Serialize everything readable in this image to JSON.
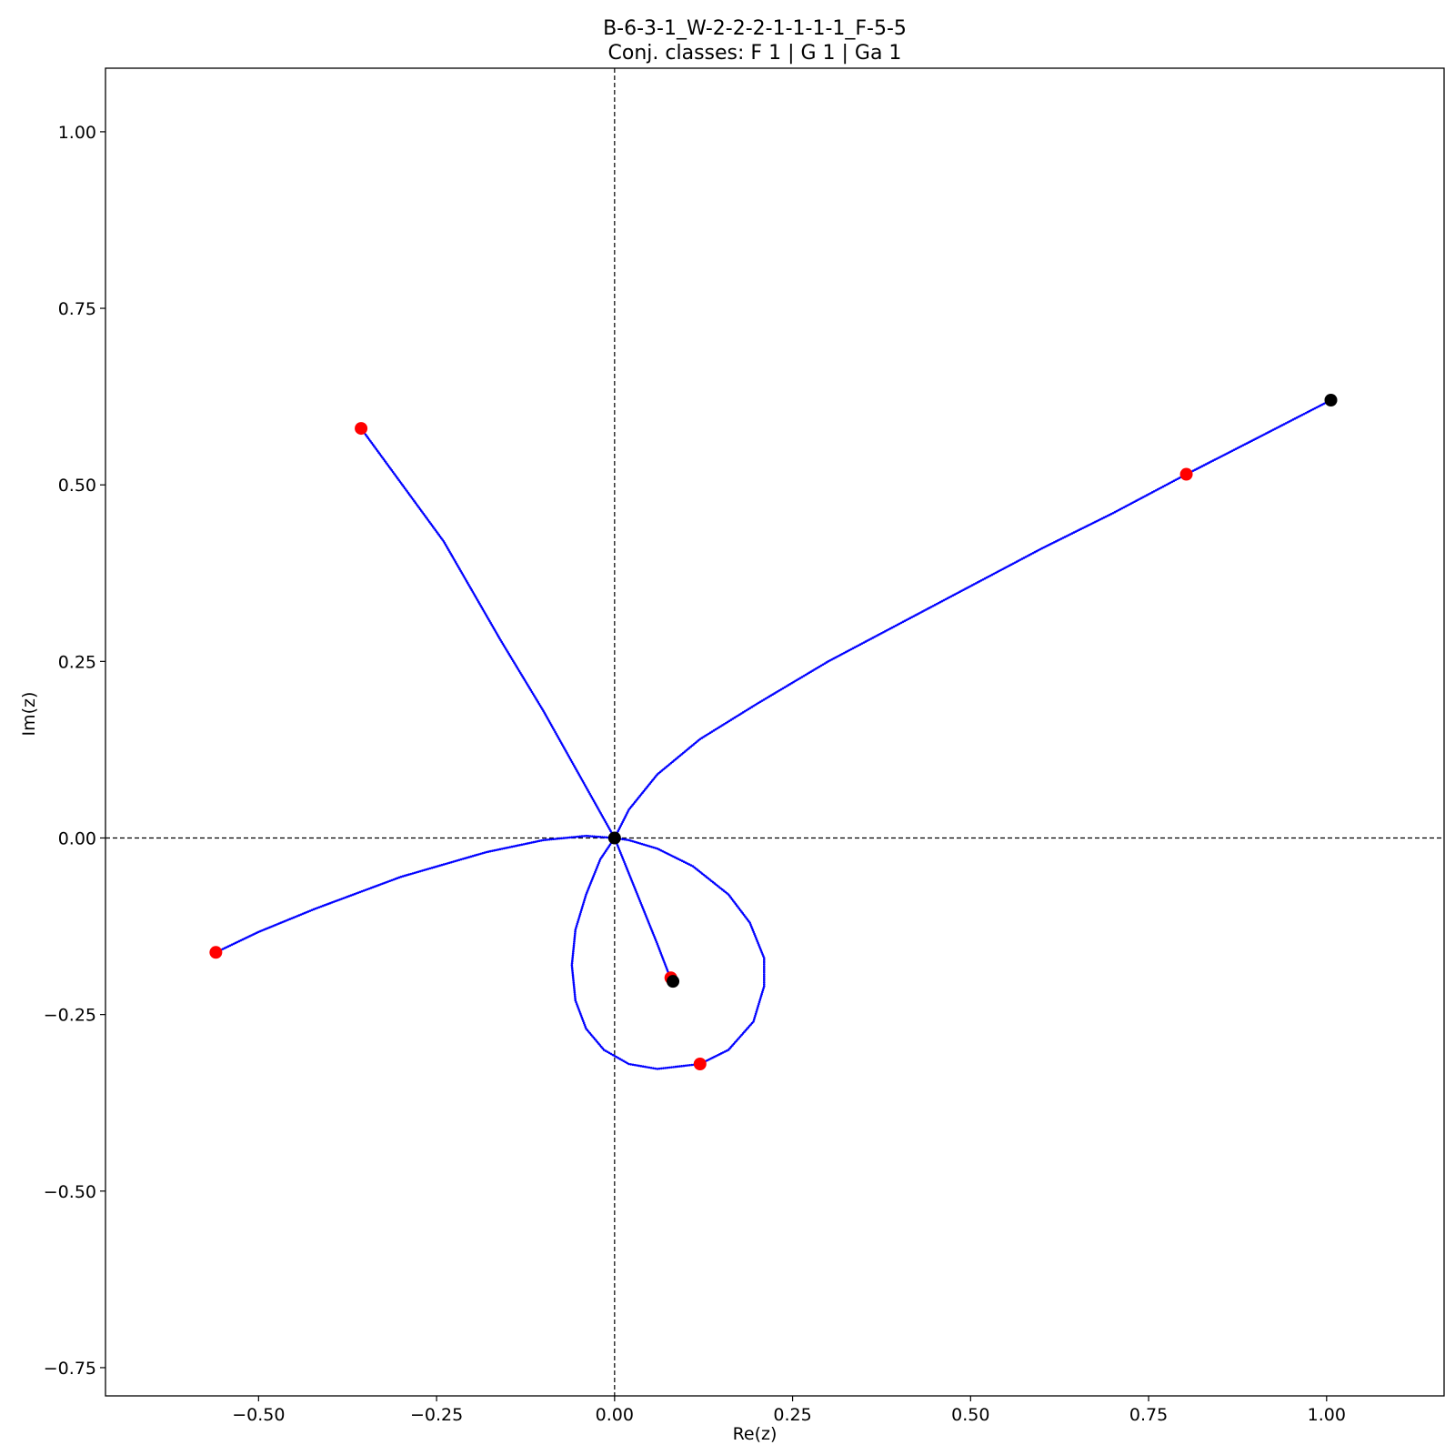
{
  "chart_data": {
    "type": "scatter",
    "title": "B-6-3-1_W-2-2-2-1-1-1-1_F-5-5",
    "subtitle": "Conj. classes: F 1 | G 1 | Ga 1",
    "xlabel": "Re(z)",
    "ylabel": "Im(z)",
    "xlim": [
      -0.715,
      1.165
    ],
    "ylim": [
      -0.79,
      1.09
    ],
    "xticks": [
      -0.5,
      -0.25,
      0.0,
      0.25,
      0.5,
      0.75,
      1.0
    ],
    "xtick_labels": [
      "−0.50",
      "−0.25",
      "0.00",
      "0.25",
      "0.50",
      "0.75",
      "1.00"
    ],
    "yticks": [
      -0.75,
      -0.5,
      -0.25,
      0.0,
      0.25,
      0.5,
      0.75,
      1.0
    ],
    "ytick_labels": [
      "−0.75",
      "−0.50",
      "−0.25",
      "0.00",
      "0.25",
      "0.50",
      "0.75",
      "1.00"
    ],
    "grid": false,
    "reference_lines": {
      "x": 0,
      "y": 0,
      "style": "dashed"
    },
    "series": [
      {
        "color": "#0000ff",
        "marker": "small-dot",
        "paths": [
          {
            "points": [
              [
                -0.356,
                0.58
              ],
              [
                -0.24,
                0.42
              ],
              [
                -0.16,
                0.28
              ],
              [
                -0.1,
                0.18
              ],
              [
                -0.05,
                0.09
              ],
              [
                0.0,
                0.0
              ]
            ]
          },
          {
            "points": [
              [
                0.0,
                0.0
              ],
              [
                0.02,
                0.04
              ],
              [
                0.06,
                0.09
              ],
              [
                0.12,
                0.14
              ],
              [
                0.2,
                0.19
              ],
              [
                0.3,
                0.25
              ],
              [
                0.45,
                0.33
              ],
              [
                0.6,
                0.41
              ],
              [
                0.7,
                0.46
              ],
              [
                0.803,
                0.515
              ],
              [
                0.9,
                0.565
              ],
              [
                1.006,
                0.62
              ]
            ]
          },
          {
            "points": [
              [
                0.0,
                0.0
              ],
              [
                -0.04,
                0.003
              ],
              [
                -0.1,
                -0.003
              ],
              [
                -0.18,
                -0.02
              ],
              [
                -0.3,
                -0.055
              ],
              [
                -0.42,
                -0.1
              ],
              [
                -0.5,
                -0.133
              ],
              [
                -0.56,
                -0.162
              ]
            ]
          },
          {
            "points": [
              [
                0.0,
                0.0
              ],
              [
                0.02,
                -0.05
              ],
              [
                0.04,
                -0.1
              ],
              [
                0.06,
                -0.15
              ],
              [
                0.079,
                -0.2
              ]
            ]
          },
          {
            "points": [
              [
                0.0,
                0.0
              ],
              [
                -0.02,
                -0.03
              ],
              [
                -0.04,
                -0.08
              ],
              [
                -0.055,
                -0.13
              ],
              [
                -0.06,
                -0.18
              ],
              [
                -0.055,
                -0.23
              ],
              [
                -0.04,
                -0.27
              ],
              [
                -0.015,
                -0.3
              ],
              [
                0.02,
                -0.32
              ],
              [
                0.06,
                -0.327
              ],
              [
                0.12,
                -0.32
              ],
              [
                0.16,
                -0.3
              ],
              [
                0.195,
                -0.26
              ],
              [
                0.21,
                -0.21
              ],
              [
                0.21,
                -0.17
              ],
              [
                0.19,
                -0.12
              ],
              [
                0.16,
                -0.08
              ],
              [
                0.11,
                -0.04
              ],
              [
                0.06,
                -0.015
              ],
              [
                0.02,
                -0.003
              ],
              [
                0.0,
                0.0
              ]
            ]
          }
        ]
      },
      {
        "color": "#ff0000",
        "marker": "large-dot",
        "points": [
          [
            -0.356,
            0.58
          ],
          [
            0.803,
            0.515
          ],
          [
            -0.56,
            -0.162
          ],
          [
            0.079,
            -0.198
          ],
          [
            0.12,
            -0.32
          ]
        ]
      },
      {
        "color": "#000000",
        "marker": "large-dot",
        "points": [
          [
            0.0,
            0.0
          ],
          [
            1.006,
            0.62
          ],
          [
            0.082,
            -0.203
          ]
        ]
      }
    ]
  }
}
